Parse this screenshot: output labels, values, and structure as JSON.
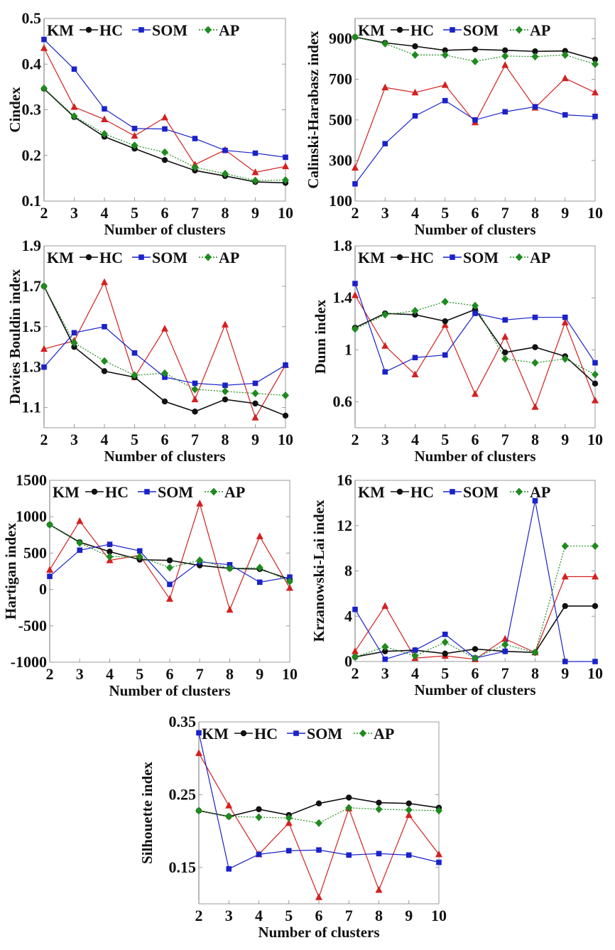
{
  "legend": {
    "labels": [
      "KM",
      "HC",
      "SOM",
      "AP"
    ]
  },
  "colors": {
    "red": "#d42020",
    "black": "#111111",
    "blue": "#1a22c8",
    "green": "#1f8a1f"
  },
  "chart_data": [
    {
      "id": "cindex",
      "type": "line",
      "title": "",
      "xlabel": "Number of clusters",
      "ylabel": "Cindex",
      "x": [
        2,
        3,
        4,
        5,
        6,
        7,
        8,
        9,
        10
      ],
      "xlim": [
        2,
        10
      ],
      "ylim": [
        0.1,
        0.5
      ],
      "yticks": [
        0.1,
        0.2,
        0.3,
        0.4,
        0.5
      ],
      "ytick_labels": [
        "0.1",
        "0.2",
        "0.3",
        "0.4",
        "0.5"
      ],
      "legend_position": "top-left",
      "series": [
        {
          "name": "KM",
          "color": "red",
          "marker": "triangle",
          "dash": false,
          "values": [
            0.435,
            0.306,
            0.279,
            0.243,
            0.283,
            0.18,
            0.212,
            0.163,
            0.176
          ]
        },
        {
          "name": "HC",
          "color": "black",
          "marker": "circle",
          "dash": false,
          "values": [
            0.346,
            0.284,
            0.241,
            0.215,
            0.19,
            0.167,
            0.155,
            0.142,
            0.14
          ]
        },
        {
          "name": "SOM",
          "color": "blue",
          "marker": "square",
          "dash": false,
          "values": [
            0.454,
            0.389,
            0.302,
            0.259,
            0.258,
            0.237,
            0.211,
            0.205,
            0.196
          ]
        },
        {
          "name": "AP",
          "color": "green",
          "marker": "diamond",
          "dash": true,
          "values": [
            0.347,
            0.286,
            0.247,
            0.222,
            0.207,
            0.174,
            0.16,
            0.145,
            0.146
          ]
        }
      ]
    },
    {
      "id": "calinski-harabasz",
      "type": "line",
      "title": "",
      "xlabel": "Number of clusters",
      "ylabel": "Calinski-Harabasz index",
      "x": [
        2,
        3,
        4,
        5,
        6,
        7,
        8,
        9,
        10
      ],
      "xlim": [
        2,
        10
      ],
      "ylim": [
        100,
        1000
      ],
      "yticks": [
        100,
        300,
        500,
        700,
        900
      ],
      "ytick_labels": [
        "100",
        "300",
        "500",
        "700",
        "900"
      ],
      "legend_position": "top-left",
      "series": [
        {
          "name": "KM",
          "color": "red",
          "marker": "triangle",
          "dash": false,
          "values": [
            264,
            660,
            635,
            672,
            488,
            770,
            560,
            705,
            635
          ]
        },
        {
          "name": "HC",
          "color": "black",
          "marker": "circle",
          "dash": false,
          "values": [
            908,
            880,
            863,
            843,
            848,
            843,
            838,
            840,
            798
          ]
        },
        {
          "name": "SOM",
          "color": "blue",
          "marker": "square",
          "dash": false,
          "values": [
            185,
            383,
            520,
            595,
            500,
            540,
            565,
            525,
            517
          ]
        },
        {
          "name": "AP",
          "color": "green",
          "marker": "diamond",
          "dash": true,
          "values": [
            908,
            876,
            820,
            820,
            788,
            815,
            812,
            820,
            775
          ]
        }
      ]
    },
    {
      "id": "davies-bouldin",
      "type": "line",
      "title": "",
      "xlabel": "Number of clusters",
      "ylabel": "Davies Bouldin index",
      "x": [
        2,
        3,
        4,
        5,
        6,
        7,
        8,
        9,
        10
      ],
      "xlim": [
        2,
        10
      ],
      "ylim": [
        1.0,
        1.9
      ],
      "yticks": [
        1.1,
        1.3,
        1.5,
        1.7,
        1.9
      ],
      "ytick_labels": [
        "1.1",
        "1.3",
        "1.5",
        "1.7",
        "1.9"
      ],
      "legend_position": "top-left",
      "series": [
        {
          "name": "KM",
          "color": "red",
          "marker": "triangle",
          "dash": false,
          "values": [
            1.39,
            1.43,
            1.72,
            1.25,
            1.49,
            1.14,
            1.51,
            1.05,
            1.31
          ]
        },
        {
          "name": "HC",
          "color": "black",
          "marker": "circle",
          "dash": false,
          "values": [
            1.7,
            1.4,
            1.28,
            1.25,
            1.13,
            1.08,
            1.14,
            1.12,
            1.06
          ]
        },
        {
          "name": "SOM",
          "color": "blue",
          "marker": "square",
          "dash": false,
          "values": [
            1.3,
            1.47,
            1.5,
            1.37,
            1.25,
            1.22,
            1.21,
            1.22,
            1.31
          ]
        },
        {
          "name": "AP",
          "color": "green",
          "marker": "diamond",
          "dash": true,
          "values": [
            1.7,
            1.42,
            1.33,
            1.26,
            1.27,
            1.19,
            1.18,
            1.17,
            1.16
          ]
        }
      ]
    },
    {
      "id": "dunn",
      "type": "line",
      "title": "",
      "xlabel": "Number of clusters",
      "ylabel": "Dunn index",
      "x": [
        2,
        3,
        4,
        5,
        6,
        7,
        8,
        9,
        10
      ],
      "xlim": [
        2,
        10
      ],
      "ylim": [
        0.4,
        1.8
      ],
      "yticks": [
        0.6,
        1.0,
        1.4,
        1.8
      ],
      "ytick_labels": [
        "0.6",
        "1",
        "1.4",
        "1.8"
      ],
      "legend_position": "top-left",
      "series": [
        {
          "name": "KM",
          "color": "red",
          "marker": "triangle",
          "dash": false,
          "values": [
            1.42,
            1.03,
            0.81,
            1.19,
            0.66,
            1.1,
            0.56,
            1.21,
            0.61
          ]
        },
        {
          "name": "HC",
          "color": "black",
          "marker": "circle",
          "dash": false,
          "values": [
            1.17,
            1.28,
            1.27,
            1.22,
            1.31,
            0.98,
            1.02,
            0.95,
            0.74
          ]
        },
        {
          "name": "SOM",
          "color": "blue",
          "marker": "square",
          "dash": false,
          "values": [
            1.51,
            0.83,
            0.94,
            0.96,
            1.28,
            1.23,
            1.25,
            1.25,
            0.9
          ]
        },
        {
          "name": "AP",
          "color": "green",
          "marker": "diamond",
          "dash": true,
          "values": [
            1.16,
            1.27,
            1.3,
            1.37,
            1.34,
            0.93,
            0.9,
            0.93,
            0.81
          ]
        }
      ]
    },
    {
      "id": "hartigan",
      "type": "line",
      "title": "",
      "xlabel": "Number of clusters",
      "ylabel": "Hartigan index",
      "x": [
        2,
        3,
        4,
        5,
        6,
        7,
        8,
        9,
        10
      ],
      "xlim": [
        2,
        10
      ],
      "ylim": [
        -1000,
        1500
      ],
      "yticks": [
        -1000,
        -500,
        0,
        500,
        1000,
        1500
      ],
      "ytick_labels": [
        "-1000",
        "-500",
        "0",
        "500",
        "1000",
        "1500"
      ],
      "legend_position": "top-left",
      "series": [
        {
          "name": "KM",
          "color": "red",
          "marker": "triangle",
          "dash": false,
          "values": [
            270,
            940,
            400,
            470,
            -130,
            1180,
            -280,
            730,
            20
          ]
        },
        {
          "name": "HC",
          "color": "black",
          "marker": "circle",
          "dash": false,
          "values": [
            890,
            650,
            520,
            410,
            400,
            330,
            290,
            280,
            140
          ]
        },
        {
          "name": "SOM",
          "color": "blue",
          "marker": "square",
          "dash": false,
          "values": [
            180,
            540,
            620,
            530,
            70,
            380,
            340,
            100,
            170
          ]
        },
        {
          "name": "AP",
          "color": "green",
          "marker": "diamond",
          "dash": true,
          "values": [
            890,
            640,
            450,
            450,
            300,
            400,
            290,
            300,
            110
          ]
        }
      ]
    },
    {
      "id": "krzanowski-lai",
      "type": "line",
      "title": "",
      "xlabel": "Number of clusters",
      "ylabel": "Krzanowski-Lai index",
      "x": [
        2,
        3,
        4,
        5,
        6,
        7,
        8,
        9,
        10
      ],
      "xlim": [
        2,
        10
      ],
      "ylim": [
        0,
        16
      ],
      "yticks": [
        0,
        4,
        8,
        12,
        16
      ],
      "ytick_labels": [
        "0",
        "4",
        "8",
        "12",
        "16"
      ],
      "legend_position": "top-left",
      "series": [
        {
          "name": "KM",
          "color": "red",
          "marker": "triangle",
          "dash": false,
          "values": [
            0.9,
            4.9,
            0.3,
            0.5,
            0.2,
            2.0,
            0.8,
            7.5,
            7.5
          ]
        },
        {
          "name": "HC",
          "color": "black",
          "marker": "circle",
          "dash": false,
          "values": [
            0.4,
            0.9,
            1.0,
            0.7,
            1.1,
            0.9,
            0.8,
            4.9,
            4.9
          ]
        },
        {
          "name": "SOM",
          "color": "blue",
          "marker": "square",
          "dash": false,
          "values": [
            4.6,
            0.2,
            1.0,
            2.4,
            0.3,
            0.9,
            14.2,
            0.0,
            0.0
          ]
        },
        {
          "name": "AP",
          "color": "green",
          "marker": "diamond",
          "dash": true,
          "values": [
            0.4,
            1.3,
            0.5,
            1.7,
            0.3,
            1.5,
            0.8,
            10.2,
            10.2
          ]
        }
      ]
    },
    {
      "id": "silhouette",
      "type": "line",
      "title": "",
      "xlabel": "Number of clusters",
      "ylabel": "Silhouette index",
      "x": [
        2,
        3,
        4,
        5,
        6,
        7,
        8,
        9,
        10
      ],
      "xlim": [
        2,
        10
      ],
      "ylim": [
        0.1,
        0.35
      ],
      "yticks": [
        0.15,
        0.25,
        0.35
      ],
      "ytick_labels": [
        "0.15",
        "0.25",
        "0.35"
      ],
      "legend_position": "top-left",
      "series": [
        {
          "name": "KM",
          "color": "red",
          "marker": "triangle",
          "dash": false,
          "values": [
            0.307,
            0.235,
            0.168,
            0.211,
            0.109,
            0.231,
            0.119,
            0.222,
            0.168
          ]
        },
        {
          "name": "HC",
          "color": "black",
          "marker": "circle",
          "dash": false,
          "values": [
            0.228,
            0.22,
            0.23,
            0.222,
            0.238,
            0.246,
            0.239,
            0.238,
            0.232
          ]
        },
        {
          "name": "SOM",
          "color": "blue",
          "marker": "square",
          "dash": false,
          "values": [
            0.335,
            0.148,
            0.168,
            0.173,
            0.174,
            0.167,
            0.169,
            0.167,
            0.157
          ]
        },
        {
          "name": "AP",
          "color": "green",
          "marker": "diamond",
          "dash": true,
          "values": [
            0.228,
            0.22,
            0.219,
            0.218,
            0.211,
            0.232,
            0.23,
            0.229,
            0.228
          ]
        }
      ]
    }
  ]
}
